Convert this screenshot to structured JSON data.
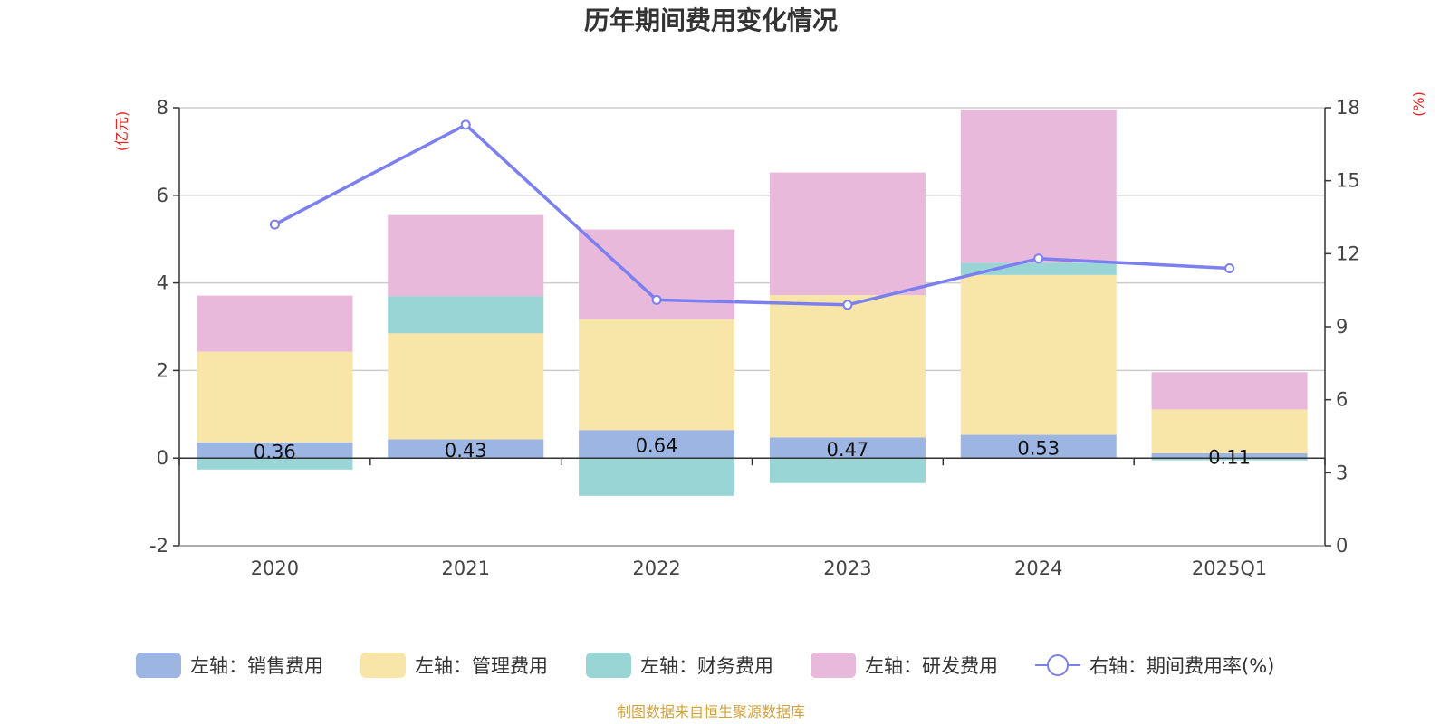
{
  "chart_data": {
    "type": "bar",
    "title": "历年期间费用变化情况",
    "source_note": "制图数据来自恒生聚源数据库",
    "categories": [
      "2020",
      "2021",
      "2022",
      "2023",
      "2024",
      "2025Q1"
    ],
    "left_axis": {
      "unit": "(亿元)",
      "ylim": [
        -2,
        8
      ],
      "ticks": [
        -2,
        0,
        2,
        4,
        6,
        8
      ]
    },
    "right_axis": {
      "unit": "(%)",
      "ylim": [
        0,
        18
      ],
      "ticks": [
        0,
        3,
        6,
        9,
        12,
        15,
        18
      ]
    },
    "series": [
      {
        "name": "左轴：销售费用",
        "type": "bar",
        "axis": "left",
        "color": "#9db5e2",
        "values": [
          0.36,
          0.43,
          0.64,
          0.47,
          0.53,
          0.11
        ],
        "labels": [
          "0.36",
          "0.43",
          "0.64",
          "0.47",
          "0.53",
          "0.11"
        ]
      },
      {
        "name": "左轴：管理费用",
        "type": "bar",
        "axis": "left",
        "color": "#f8e6a8",
        "values": [
          2.07,
          2.42,
          2.53,
          3.25,
          3.65,
          1.0
        ]
      },
      {
        "name": "左轴：财务费用",
        "type": "bar",
        "axis": "left",
        "color": "#98d5d4",
        "values": [
          -0.26,
          0.85,
          -0.86,
          -0.57,
          0.28,
          -0.05
        ]
      },
      {
        "name": "左轴：研发费用",
        "type": "bar",
        "axis": "left",
        "color": "#e8b9da",
        "values": [
          1.28,
          1.85,
          2.05,
          2.8,
          3.5,
          0.85
        ]
      },
      {
        "name": "右轴：期间费用率(%)",
        "type": "line",
        "axis": "right",
        "color": "#7b7ff0",
        "values": [
          13.2,
          17.3,
          10.1,
          9.9,
          11.8,
          11.4
        ]
      }
    ],
    "grid": true,
    "legend_position": "bottom"
  }
}
